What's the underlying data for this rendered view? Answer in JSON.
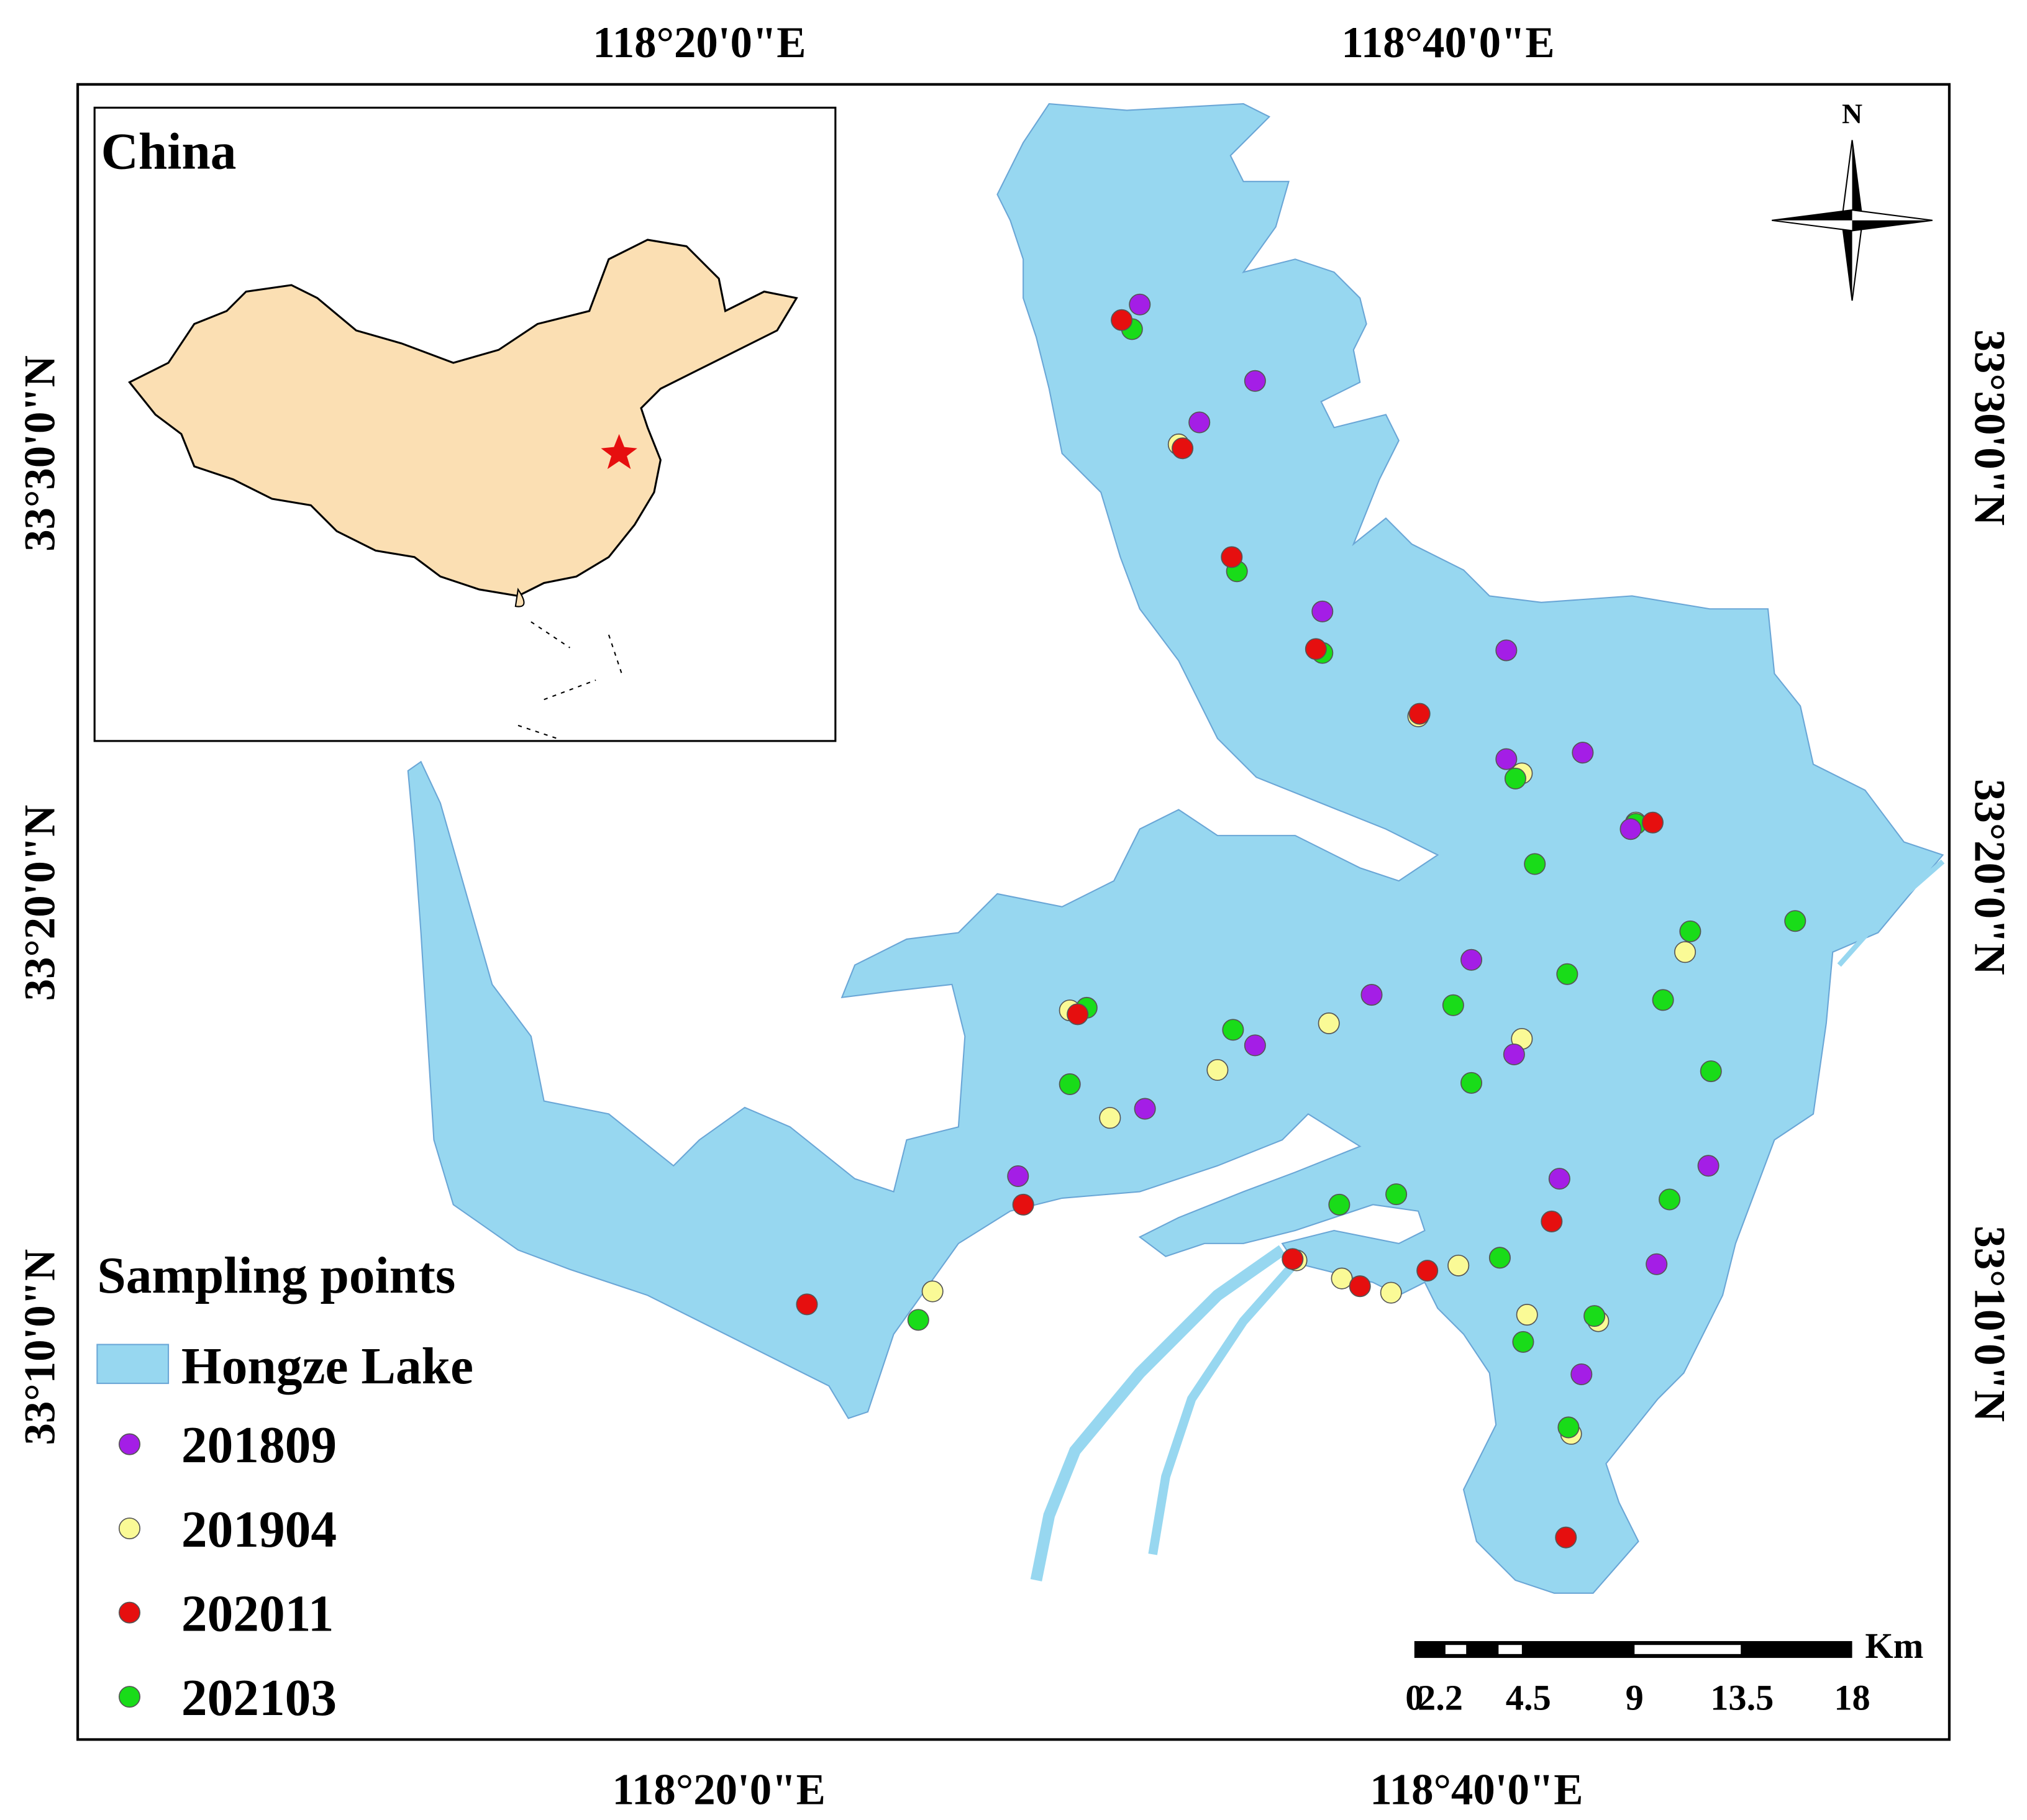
{
  "map": {
    "inset_title": "China",
    "north": "N",
    "lon_labels": [
      "118°20'0\"E",
      "118°40'0\"E"
    ],
    "lat_labels": [
      "33°30'0\"N",
      "33°20'0\"N",
      "33°10'0\"N"
    ],
    "legend": {
      "title": "Sampling points",
      "lake": "Hongze Lake",
      "series": [
        {
          "name": "201809",
          "color": "#a41ee6"
        },
        {
          "name": "201904",
          "color": "#fafa96"
        },
        {
          "name": "202011",
          "color": "#e60f0f"
        },
        {
          "name": "202103",
          "color": "#19dc19"
        }
      ]
    },
    "scale": {
      "unit": "Km",
      "labels": [
        0,
        2.2,
        4.5,
        9,
        13.5,
        18
      ]
    }
  }
}
